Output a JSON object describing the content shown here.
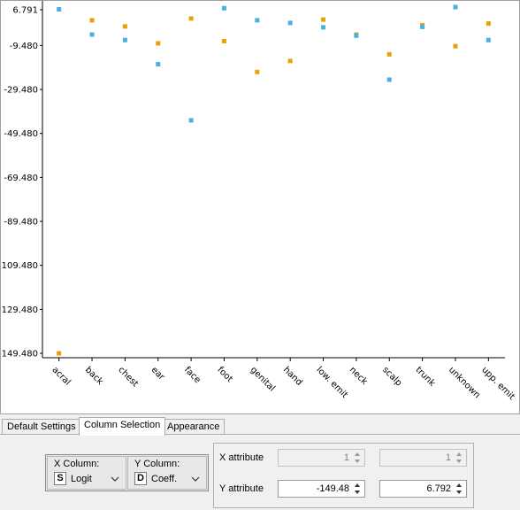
{
  "chart_data": {
    "type": "scatter",
    "y_ticks": [
      "6.791",
      "-9.480",
      "-29.480",
      "-49.480",
      "-69.480",
      "-89.480",
      "-109.480",
      "-129.480",
      "-149.480"
    ],
    "y_tick_values": [
      6.791,
      -9.48,
      -29.48,
      -49.48,
      -69.48,
      -89.48,
      -109.48,
      -129.48,
      -149.48
    ],
    "ylim": [
      -149.48,
      6.791
    ],
    "categories": [
      "acral",
      "back",
      "chest",
      "ear",
      "face",
      "foot",
      "genital",
      "hand",
      "low. emit",
      "neck",
      "scalp",
      "trunk",
      "unknown",
      "upp. emit"
    ],
    "series": [
      {
        "color": "#e6a400",
        "values": [
          -149.5,
          2.0,
          -0.8,
          -8.5,
          2.8,
          -7.5,
          -21.5,
          -16.5,
          2.3,
          -4.5,
          -13.5,
          -0.2,
          -9.8,
          0.5
        ]
      },
      {
        "color": "#4bafe0",
        "values": [
          7.0,
          -4.5,
          -7.0,
          -18.0,
          -43.5,
          7.5,
          2.0,
          0.8,
          -1.2,
          -5.0,
          -25.0,
          -1.0,
          8.0,
          -7.0
        ]
      }
    ],
    "grid": false,
    "legend": "none"
  },
  "tabs": [
    {
      "label": "Default Settings"
    },
    {
      "label": "Column Selection"
    },
    {
      "label": "Appearance"
    }
  ],
  "column_selection": {
    "x_label": "X Column:",
    "x_type": "S",
    "x_value": "Logit",
    "y_label": "Y Column:",
    "y_type": "D",
    "y_value": "Coeff."
  },
  "attributes": {
    "x_label": "X attribute",
    "x_min": "1",
    "x_max": "1",
    "y_label": "Y attribute",
    "y_min": "-149.48",
    "y_max": "6.792"
  }
}
